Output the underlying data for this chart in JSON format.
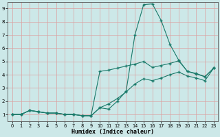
{
  "xlabel": "Humidex (Indice chaleur)",
  "background_color": "#cce8e8",
  "grid_color": "#dba0a0",
  "line_color": "#1a7a6a",
  "xlim": [
    -0.5,
    23.5
  ],
  "ylim": [
    0.5,
    9.5
  ],
  "xticks": [
    0,
    1,
    2,
    3,
    4,
    5,
    6,
    7,
    8,
    9,
    10,
    11,
    12,
    13,
    14,
    15,
    16,
    17,
    18,
    19,
    20,
    21,
    22,
    23
  ],
  "yticks": [
    1,
    2,
    3,
    4,
    5,
    6,
    7,
    8,
    9
  ],
  "lines": [
    {
      "x": [
        0,
        1,
        2,
        3,
        4,
        5,
        6,
        7,
        8,
        9,
        10,
        11,
        12,
        13,
        14,
        15,
        16,
        17,
        18,
        19,
        20,
        21,
        22,
        23
      ],
      "y": [
        1,
        1,
        1.3,
        1.2,
        1.1,
        1.1,
        1.0,
        1.0,
        0.9,
        0.9,
        1.5,
        1.4,
        2.0,
        2.75,
        7.0,
        9.3,
        9.35,
        8.1,
        6.3,
        5.1,
        4.25,
        4.1,
        3.85,
        4.5
      ]
    },
    {
      "x": [
        0,
        1,
        2,
        3,
        4,
        5,
        6,
        7,
        8,
        9,
        10,
        11,
        12,
        13,
        14,
        15,
        16,
        17,
        18,
        19,
        20,
        21,
        22,
        23
      ],
      "y": [
        1,
        1,
        1.3,
        1.2,
        1.1,
        1.1,
        1.0,
        1.0,
        0.9,
        0.9,
        4.25,
        4.35,
        4.5,
        4.65,
        4.8,
        5.0,
        4.55,
        4.7,
        4.85,
        5.05,
        4.25,
        4.05,
        3.85,
        4.5
      ]
    },
    {
      "x": [
        0,
        1,
        2,
        3,
        4,
        5,
        6,
        7,
        8,
        9,
        10,
        11,
        12,
        13,
        14,
        15,
        16,
        17,
        18,
        19,
        20,
        21,
        22,
        23
      ],
      "y": [
        1,
        1,
        1.3,
        1.2,
        1.1,
        1.1,
        1.0,
        1.0,
        0.9,
        0.9,
        1.5,
        1.8,
        2.2,
        2.7,
        3.3,
        3.7,
        3.55,
        3.75,
        4.0,
        4.2,
        3.9,
        3.75,
        3.55,
        4.5
      ]
    }
  ]
}
